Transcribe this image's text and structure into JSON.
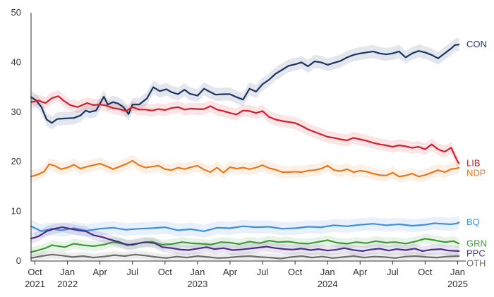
{
  "chart_data": {
    "type": "line",
    "title": "",
    "xlabel": "",
    "ylabel": "",
    "ylim": [
      0,
      50
    ],
    "xlim": [
      2021.72,
      2025.03
    ],
    "grid": false,
    "legend": "inline labels at right end of each series",
    "y_ticks": [
      {
        "value": 0,
        "label": "0"
      },
      {
        "value": 10,
        "label": "10"
      },
      {
        "value": 20,
        "label": "20"
      },
      {
        "value": 30,
        "label": "30"
      },
      {
        "value": 40,
        "label": "40"
      },
      {
        "value": 50,
        "label": "50"
      }
    ],
    "x_ticks": [
      {
        "t": 2021.75,
        "line1": "Oct",
        "line2": "2021"
      },
      {
        "t": 2022.0,
        "line1": "Jan",
        "line2": "2022"
      },
      {
        "t": 2022.25,
        "line1": "Apr",
        "line2": ""
      },
      {
        "t": 2022.5,
        "line1": "Jul",
        "line2": ""
      },
      {
        "t": 2022.75,
        "line1": "Oct",
        "line2": ""
      },
      {
        "t": 2023.0,
        "line1": "Jan",
        "line2": "2023"
      },
      {
        "t": 2023.25,
        "line1": "Apr",
        "line2": ""
      },
      {
        "t": 2023.5,
        "line1": "Jul",
        "line2": ""
      },
      {
        "t": 2023.75,
        "line1": "Oct",
        "line2": ""
      },
      {
        "t": 2024.0,
        "line1": "Jan",
        "line2": "2024"
      },
      {
        "t": 2024.25,
        "line1": "Apr",
        "line2": ""
      },
      {
        "t": 2024.5,
        "line1": "Jul",
        "line2": ""
      },
      {
        "t": 2024.75,
        "line1": "Oct",
        "line2": ""
      },
      {
        "t": 2025.0,
        "line1": "Jan",
        "line2": "2025"
      }
    ],
    "series": [
      {
        "name": "CON",
        "color": "#1b3560",
        "band": 1.3,
        "x": [
          2021.72,
          2021.76,
          2021.8,
          2021.84,
          2021.88,
          2021.92,
          2021.97,
          2022.05,
          2022.1,
          2022.14,
          2022.17,
          2022.22,
          2022.28,
          2022.31,
          2022.35,
          2022.39,
          2022.43,
          2022.47,
          2022.5,
          2022.55,
          2022.61,
          2022.66,
          2022.71,
          2022.76,
          2022.8,
          2022.85,
          2022.9,
          2022.94,
          2023.0,
          2023.05,
          2023.1,
          2023.14,
          2023.2,
          2023.25,
          2023.3,
          2023.35,
          2023.4,
          2023.45,
          2023.5,
          2023.55,
          2023.6,
          2023.65,
          2023.7,
          2023.75,
          2023.8,
          2023.85,
          2023.9,
          2023.95,
          2024.0,
          2024.05,
          2024.1,
          2024.15,
          2024.2,
          2024.25,
          2024.3,
          2024.35,
          2024.4,
          2024.45,
          2024.5,
          2024.55,
          2024.6,
          2024.65,
          2024.7,
          2024.75,
          2024.8,
          2024.85,
          2024.9,
          2024.95,
          2024.98,
          2025.01
        ],
        "y": [
          33.0,
          32.3,
          31.0,
          28.5,
          27.8,
          28.6,
          28.7,
          28.8,
          29.3,
          30.3,
          30.0,
          30.3,
          33.1,
          31.5,
          32.0,
          31.7,
          31.0,
          29.6,
          31.5,
          31.5,
          32.7,
          35.0,
          34.2,
          34.6,
          34.0,
          33.6,
          34.5,
          33.7,
          33.3,
          34.7,
          34.0,
          33.5,
          33.6,
          33.6,
          33.0,
          32.5,
          34.7,
          34.1,
          35.6,
          36.5,
          37.7,
          38.5,
          39.3,
          39.6,
          40.0,
          39.2,
          40.2,
          40.0,
          39.5,
          39.9,
          40.3,
          41.0,
          41.5,
          41.8,
          42.0,
          42.2,
          41.8,
          41.6,
          41.8,
          42.2,
          41.0,
          41.8,
          42.3,
          42.0,
          41.5,
          40.8,
          41.8,
          42.8,
          43.5,
          43.6
        ]
      },
      {
        "name": "LIB",
        "color": "#d41f2a",
        "band": 1.2,
        "x": [
          2021.72,
          2021.78,
          2021.83,
          2021.88,
          2021.93,
          2021.97,
          2022.02,
          2022.08,
          2022.15,
          2022.2,
          2022.25,
          2022.3,
          2022.35,
          2022.4,
          2022.45,
          2022.5,
          2022.55,
          2022.6,
          2022.65,
          2022.7,
          2022.75,
          2022.8,
          2022.85,
          2022.9,
          2022.95,
          2023.0,
          2023.05,
          2023.1,
          2023.15,
          2023.2,
          2023.25,
          2023.3,
          2023.35,
          2023.4,
          2023.45,
          2023.5,
          2023.55,
          2023.6,
          2023.65,
          2023.7,
          2023.75,
          2023.8,
          2023.85,
          2023.9,
          2023.95,
          2024.0,
          2024.05,
          2024.1,
          2024.15,
          2024.2,
          2024.25,
          2024.3,
          2024.35,
          2024.4,
          2024.45,
          2024.5,
          2024.55,
          2024.6,
          2024.65,
          2024.7,
          2024.75,
          2024.8,
          2024.85,
          2024.9,
          2024.95,
          2025.0,
          2025.01
        ],
        "y": [
          32.0,
          32.3,
          31.8,
          32.8,
          33.2,
          32.3,
          31.4,
          31.0,
          31.8,
          31.4,
          31.5,
          31.3,
          30.8,
          30.6,
          30.2,
          31.0,
          30.5,
          30.5,
          30.3,
          30.6,
          30.4,
          30.8,
          31.0,
          30.5,
          30.7,
          30.6,
          30.6,
          31.2,
          30.5,
          30.2,
          29.8,
          29.5,
          30.3,
          30.2,
          29.8,
          30.2,
          29.0,
          28.5,
          28.2,
          28.0,
          27.8,
          27.2,
          26.5,
          26.0,
          25.5,
          25.0,
          24.8,
          24.5,
          24.3,
          24.8,
          24.5,
          24.2,
          23.8,
          23.5,
          23.3,
          23.0,
          23.3,
          23.1,
          22.8,
          23.0,
          22.5,
          23.5,
          22.5,
          22.0,
          22.8,
          20.0,
          19.7
        ]
      },
      {
        "name": "NDP",
        "color": "#e8781c",
        "band": 1.2,
        "x": [
          2021.72,
          2021.78,
          2021.82,
          2021.86,
          2021.9,
          2021.95,
          2022.0,
          2022.05,
          2022.1,
          2022.15,
          2022.2,
          2022.25,
          2022.3,
          2022.35,
          2022.4,
          2022.45,
          2022.5,
          2022.55,
          2022.6,
          2022.65,
          2022.7,
          2022.75,
          2022.8,
          2022.85,
          2022.9,
          2022.95,
          2023.0,
          2023.05,
          2023.1,
          2023.15,
          2023.2,
          2023.25,
          2023.3,
          2023.35,
          2023.4,
          2023.45,
          2023.5,
          2023.55,
          2023.6,
          2023.65,
          2023.7,
          2023.75,
          2023.8,
          2023.85,
          2023.9,
          2023.95,
          2024.0,
          2024.05,
          2024.1,
          2024.15,
          2024.2,
          2024.25,
          2024.3,
          2024.35,
          2024.4,
          2024.45,
          2024.5,
          2024.55,
          2024.6,
          2024.65,
          2024.7,
          2024.75,
          2024.8,
          2024.85,
          2024.9,
          2024.95,
          2025.0,
          2025.01
        ],
        "y": [
          17.0,
          17.5,
          18.0,
          19.5,
          19.2,
          18.5,
          18.8,
          19.4,
          18.6,
          19.0,
          19.3,
          19.6,
          19.1,
          18.5,
          19.0,
          19.5,
          20.2,
          19.3,
          18.8,
          19.0,
          19.2,
          18.5,
          18.3,
          18.8,
          18.5,
          18.9,
          19.2,
          18.4,
          17.9,
          18.8,
          17.8,
          18.9,
          18.6,
          18.8,
          18.5,
          18.8,
          19.3,
          18.7,
          18.4,
          17.9,
          17.9,
          18.0,
          17.9,
          18.2,
          18.3,
          18.6,
          19.2,
          18.3,
          18.1,
          18.5,
          17.9,
          18.2,
          18.0,
          17.6,
          17.3,
          17.2,
          17.8,
          17.0,
          17.2,
          17.6,
          17.0,
          17.3,
          17.8,
          18.3,
          17.9,
          18.5,
          18.7,
          18.8
        ]
      },
      {
        "name": "BQ",
        "color": "#3f8fdc",
        "band": 1.3,
        "x": [
          2021.72,
          2021.8,
          2021.88,
          2021.95,
          2022.05,
          2022.15,
          2022.25,
          2022.35,
          2022.45,
          2022.55,
          2022.65,
          2022.75,
          2022.85,
          2022.95,
          2023.05,
          2023.15,
          2023.25,
          2023.35,
          2023.45,
          2023.55,
          2023.65,
          2023.75,
          2023.85,
          2023.95,
          2024.05,
          2024.15,
          2024.25,
          2024.35,
          2024.45,
          2024.55,
          2024.65,
          2024.75,
          2024.82,
          2024.88,
          2024.95,
          2025.0,
          2025.01
        ],
        "y": [
          7.0,
          6.0,
          6.5,
          6.2,
          6.6,
          6.1,
          6.5,
          6.7,
          6.3,
          6.5,
          6.6,
          6.8,
          6.2,
          6.4,
          6.0,
          6.7,
          6.6,
          7.0,
          6.8,
          6.9,
          6.5,
          6.6,
          6.9,
          6.8,
          7.2,
          7.0,
          7.3,
          7.5,
          7.2,
          7.4,
          7.1,
          7.3,
          7.6,
          7.5,
          7.4,
          7.6,
          7.8
        ]
      },
      {
        "name": "GRN",
        "color": "#3e9b3b",
        "band": 1.0,
        "x": [
          2021.72,
          2021.78,
          2021.83,
          2021.88,
          2021.93,
          2021.98,
          2022.05,
          2022.12,
          2022.2,
          2022.28,
          2022.35,
          2022.42,
          2022.5,
          2022.57,
          2022.65,
          2022.72,
          2022.8,
          2022.88,
          2022.95,
          2023.02,
          2023.1,
          2023.18,
          2023.25,
          2023.32,
          2023.4,
          2023.48,
          2023.55,
          2023.62,
          2023.7,
          2023.78,
          2023.85,
          2023.92,
          2024.0,
          2024.07,
          2024.15,
          2024.22,
          2024.3,
          2024.37,
          2024.45,
          2024.52,
          2024.6,
          2024.67,
          2024.75,
          2024.82,
          2024.9,
          2024.97,
          2025.01
        ],
        "y": [
          1.8,
          2.2,
          2.6,
          3.2,
          3.0,
          2.8,
          3.5,
          3.2,
          3.0,
          3.3,
          3.8,
          3.5,
          3.2,
          3.7,
          3.9,
          3.3,
          3.4,
          3.8,
          3.6,
          3.5,
          3.3,
          3.8,
          3.7,
          3.4,
          3.9,
          3.6,
          4.1,
          3.8,
          3.9,
          3.6,
          3.5,
          3.8,
          4.2,
          3.7,
          3.5,
          3.8,
          3.6,
          4.0,
          3.7,
          3.8,
          3.5,
          3.9,
          4.5,
          4.2,
          3.8,
          4.0,
          3.5
        ]
      },
      {
        "name": "PPC",
        "color": "#4a2d8a",
        "band": 1.0,
        "x": [
          2021.72,
          2021.78,
          2021.84,
          2021.9,
          2021.96,
          2022.02,
          2022.08,
          2022.14,
          2022.2,
          2022.27,
          2022.33,
          2022.4,
          2022.46,
          2022.53,
          2022.6,
          2022.67,
          2022.73,
          2022.8,
          2022.87,
          2022.93,
          2023.0,
          2023.07,
          2023.13,
          2023.2,
          2023.27,
          2023.33,
          2023.4,
          2023.47,
          2023.53,
          2023.6,
          2023.67,
          2023.73,
          2023.8,
          2023.87,
          2023.93,
          2024.0,
          2024.07,
          2024.13,
          2024.2,
          2024.27,
          2024.33,
          2024.4,
          2024.47,
          2024.53,
          2024.6,
          2024.67,
          2024.73,
          2024.8,
          2024.87,
          2024.93,
          2025.01
        ],
        "y": [
          4.5,
          5.0,
          6.0,
          6.5,
          6.8,
          6.5,
          6.2,
          6.0,
          5.2,
          4.8,
          4.3,
          3.8,
          3.2,
          3.5,
          3.8,
          3.6,
          2.8,
          2.6,
          2.3,
          2.2,
          2.5,
          2.8,
          2.4,
          2.6,
          2.2,
          2.3,
          2.5,
          2.7,
          2.9,
          2.6,
          2.4,
          2.3,
          2.5,
          2.2,
          2.4,
          2.1,
          2.3,
          2.6,
          2.2,
          2.0,
          2.3,
          2.5,
          2.1,
          2.4,
          2.2,
          2.5,
          2.0,
          2.3,
          2.4,
          2.1,
          2.0
        ]
      },
      {
        "name": "OTH",
        "color": "#6d6d6d",
        "band": 0.8,
        "x": [
          2021.72,
          2021.8,
          2021.88,
          2021.96,
          2022.04,
          2022.12,
          2022.2,
          2022.28,
          2022.36,
          2022.44,
          2022.52,
          2022.6,
          2022.68,
          2022.76,
          2022.84,
          2022.92,
          2023.0,
          2023.08,
          2023.16,
          2023.24,
          2023.32,
          2023.4,
          2023.48,
          2023.56,
          2023.64,
          2023.72,
          2023.8,
          2023.88,
          2023.96,
          2024.04,
          2024.12,
          2024.2,
          2024.28,
          2024.36,
          2024.44,
          2024.52,
          2024.6,
          2024.68,
          2024.76,
          2024.84,
          2024.92,
          2025.01
        ],
        "y": [
          0.6,
          1.0,
          1.3,
          1.1,
          0.8,
          1.0,
          0.7,
          0.9,
          1.2,
          1.0,
          1.3,
          1.1,
          0.8,
          0.6,
          0.9,
          0.7,
          1.0,
          0.8,
          0.6,
          0.7,
          0.9,
          1.0,
          0.8,
          0.7,
          0.5,
          0.8,
          1.0,
          0.7,
          0.9,
          0.6,
          0.8,
          1.0,
          0.7,
          0.9,
          0.8,
          0.6,
          0.9,
          1.0,
          0.8,
          0.7,
          0.9,
          1.0
        ]
      }
    ]
  }
}
